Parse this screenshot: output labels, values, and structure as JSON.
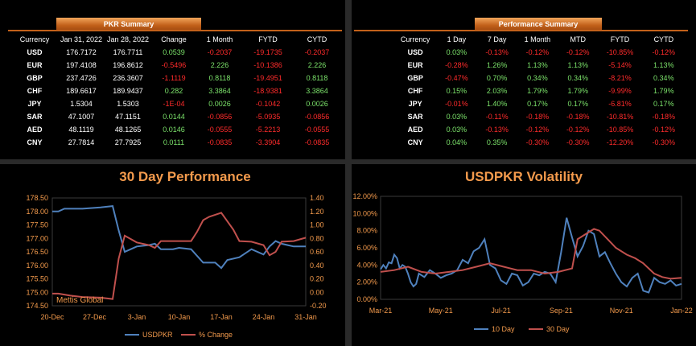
{
  "pkr_summary": {
    "title": "PKR Summary",
    "columns": [
      "Currency",
      "Jan 31, 2022",
      "Jan 28, 2022",
      "Change",
      "1 Month",
      "FYTD",
      "CYTD"
    ],
    "rows": [
      {
        "currency": "USD",
        "jan31": "176.7172",
        "jan28": "176.7711",
        "change": "0.0539",
        "m1": "-0.2037",
        "fytd": "-19.1735",
        "cytd": "-0.2037"
      },
      {
        "currency": "EUR",
        "jan31": "197.4108",
        "jan28": "196.8612",
        "change": "-0.5496",
        "m1": "2.226",
        "fytd": "-10.1386",
        "cytd": "2.226"
      },
      {
        "currency": "GBP",
        "jan31": "237.4726",
        "jan28": "236.3607",
        "change": "-1.1119",
        "m1": "0.8118",
        "fytd": "-19.4951",
        "cytd": "0.8118"
      },
      {
        "currency": "CHF",
        "jan31": "189.6617",
        "jan28": "189.9437",
        "change": "0.282",
        "m1": "3.3864",
        "fytd": "-18.9381",
        "cytd": "3.3864"
      },
      {
        "currency": "JPY",
        "jan31": "1.5304",
        "jan28": "1.5303",
        "change": "-1E-04",
        "m1": "0.0026",
        "fytd": "-0.1042",
        "cytd": "0.0026"
      },
      {
        "currency": "SAR",
        "jan31": "47.1007",
        "jan28": "47.1151",
        "change": "0.0144",
        "m1": "-0.0856",
        "fytd": "-5.0935",
        "cytd": "-0.0856"
      },
      {
        "currency": "AED",
        "jan31": "48.1119",
        "jan28": "48.1265",
        "change": "0.0146",
        "m1": "-0.0555",
        "fytd": "-5.2213",
        "cytd": "-0.0555"
      },
      {
        "currency": "CNY",
        "jan31": "27.7814",
        "jan28": "27.7925",
        "change": "0.0111",
        "m1": "-0.0835",
        "fytd": "-3.3904",
        "cytd": "-0.0835"
      }
    ]
  },
  "performance_summary": {
    "title": "Performance Summary",
    "columns": [
      "Currency",
      "1 Day",
      "7 Day",
      "1 Month",
      "MTD",
      "FYTD",
      "CYTD"
    ],
    "rows": [
      {
        "currency": "USD",
        "d1": "0.03%",
        "d7": "-0.13%",
        "m1": "-0.12%",
        "mtd": "-0.12%",
        "fytd": "-10.85%",
        "cytd": "-0.12%"
      },
      {
        "currency": "EUR",
        "d1": "-0.28%",
        "d7": "1.26%",
        "m1": "1.13%",
        "mtd": "1.13%",
        "fytd": "-5.14%",
        "cytd": "1.13%"
      },
      {
        "currency": "GBP",
        "d1": "-0.47%",
        "d7": "0.70%",
        "m1": "0.34%",
        "mtd": "0.34%",
        "fytd": "-8.21%",
        "cytd": "0.34%"
      },
      {
        "currency": "CHF",
        "d1": "0.15%",
        "d7": "2.03%",
        "m1": "1.79%",
        "mtd": "1.79%",
        "fytd": "-9.99%",
        "cytd": "1.79%"
      },
      {
        "currency": "JPY",
        "d1": "-0.01%",
        "d7": "1.40%",
        "m1": "0.17%",
        "mtd": "0.17%",
        "fytd": "-6.81%",
        "cytd": "0.17%"
      },
      {
        "currency": "SAR",
        "d1": "0.03%",
        "d7": "-0.11%",
        "m1": "-0.18%",
        "mtd": "-0.18%",
        "fytd": "-10.81%",
        "cytd": "-0.18%"
      },
      {
        "currency": "AED",
        "d1": "0.03%",
        "d7": "-0.13%",
        "m1": "-0.12%",
        "mtd": "-0.12%",
        "fytd": "-10.85%",
        "cytd": "-0.12%"
      },
      {
        "currency": "CNY",
        "d1": "0.04%",
        "d7": "0.35%",
        "m1": "-0.30%",
        "mtd": "-0.30%",
        "fytd": "-12.20%",
        "cytd": "-0.30%"
      }
    ]
  },
  "colors": {
    "accent": "#f39a4c",
    "positive": "#7be26a",
    "negative": "#ff2b2b",
    "series_blue": "#4f81bd",
    "series_red": "#c0504d"
  },
  "chart_data": [
    {
      "type": "line",
      "title": "30 Day Performance",
      "watermark": "Mettis Global",
      "x_ticks": [
        "20-Dec",
        "27-Dec",
        "3-Jan",
        "10-Jan",
        "17-Jan",
        "24-Jan",
        "31-Jan"
      ],
      "y_left_ticks": [
        "178.50",
        "178.00",
        "177.50",
        "177.00",
        "176.50",
        "176.00",
        "175.50",
        "175.00",
        "174.50"
      ],
      "y_right_ticks": [
        "1.40",
        "1.20",
        "1.00",
        "0.80",
        "0.60",
        "0.40",
        "0.20",
        "0.00",
        "-0.20"
      ],
      "ylim_left": [
        174.5,
        178.5
      ],
      "ylim_right": [
        -0.2,
        1.4
      ],
      "xlim": [
        0,
        42
      ],
      "series": [
        {
          "name": "USDPKR",
          "axis": "left",
          "color": "#4f81bd",
          "x": [
            0,
            1,
            2,
            3,
            5,
            8,
            10,
            11,
            12,
            13,
            14,
            16,
            17,
            18,
            19,
            20,
            21,
            23,
            25,
            27,
            28,
            29,
            31,
            33,
            35,
            36,
            37,
            38,
            39,
            40,
            42
          ],
          "values": [
            178.0,
            178.0,
            178.1,
            178.1,
            178.1,
            178.15,
            178.2,
            177.3,
            176.5,
            176.6,
            176.7,
            176.75,
            176.8,
            176.6,
            176.6,
            176.6,
            176.65,
            176.6,
            176.1,
            176.1,
            175.9,
            176.2,
            176.3,
            176.6,
            176.4,
            176.7,
            176.9,
            176.8,
            176.75,
            176.7,
            176.7
          ]
        },
        {
          "name": "% Change",
          "axis": "right",
          "color": "#c0504d",
          "x": [
            0,
            1,
            3,
            5,
            8,
            10,
            11,
            12,
            14,
            16,
            17,
            18,
            21,
            23,
            24,
            25,
            26,
            28,
            30,
            31,
            33,
            35,
            36,
            37,
            38,
            40,
            42
          ],
          "values": [
            -0.02,
            -0.02,
            -0.05,
            -0.07,
            -0.08,
            -0.1,
            0.5,
            0.84,
            0.74,
            0.7,
            0.66,
            0.76,
            0.76,
            0.76,
            0.9,
            1.07,
            1.12,
            1.18,
            0.93,
            0.76,
            0.75,
            0.7,
            0.55,
            0.6,
            0.75,
            0.76,
            0.81
          ]
        }
      ]
    },
    {
      "type": "line",
      "title": "USDPKR Volatility",
      "x_ticks": [
        "Mar-21",
        "May-21",
        "Jul-21",
        "Sep-21",
        "Nov-21",
        "Jan-22"
      ],
      "y_ticks": [
        "12.00%",
        "10.00%",
        "8.00%",
        "6.00%",
        "4.00%",
        "2.00%",
        "0.00%"
      ],
      "ylim": [
        0,
        12
      ],
      "xlim": [
        0,
        11
      ],
      "series": [
        {
          "name": "10 Day",
          "color": "#4f81bd",
          "x": [
            0,
            0.1,
            0.2,
            0.3,
            0.4,
            0.5,
            0.6,
            0.7,
            0.8,
            0.9,
            1.0,
            1.1,
            1.2,
            1.3,
            1.4,
            1.6,
            1.8,
            2.0,
            2.2,
            2.4,
            2.6,
            2.8,
            3.0,
            3.2,
            3.4,
            3.6,
            3.8,
            4.0,
            4.2,
            4.4,
            4.6,
            4.8,
            5.0,
            5.2,
            5.4,
            5.6,
            5.8,
            6.0,
            6.2,
            6.4,
            6.6,
            6.8,
            7.0,
            7.2,
            7.4,
            7.6,
            7.8,
            8.0,
            8.2,
            8.4,
            8.6,
            8.8,
            9.0,
            9.2,
            9.4,
            9.6,
            9.8,
            10.0,
            10.2,
            10.4,
            10.6,
            10.8,
            11.0
          ],
          "values": [
            3.5,
            4.0,
            3.6,
            4.3,
            4.2,
            5.2,
            4.8,
            3.6,
            4.0,
            3.8,
            3.0,
            2.0,
            1.5,
            1.8,
            3.0,
            2.6,
            3.4,
            3.0,
            2.5,
            2.8,
            3.0,
            3.4,
            4.6,
            4.2,
            5.6,
            6.0,
            7.0,
            4.0,
            3.6,
            2.2,
            1.8,
            3.0,
            2.8,
            1.6,
            2.0,
            3.0,
            2.8,
            3.2,
            3.0,
            2.0,
            5.5,
            9.5,
            7.2,
            5.0,
            6.2,
            8.0,
            7.6,
            5.0,
            5.5,
            4.2,
            3.0,
            2.0,
            1.5,
            2.5,
            3.0,
            1.0,
            0.8,
            2.5,
            2.0,
            1.8,
            2.2,
            1.6,
            1.8
          ]
        },
        {
          "name": "30 Day",
          "color": "#c0504d",
          "x": [
            0,
            0.5,
            1.0,
            1.5,
            2.0,
            2.5,
            3.0,
            3.5,
            4.0,
            4.5,
            5.0,
            5.5,
            6.0,
            6.5,
            7.0,
            7.2,
            7.5,
            7.8,
            8.0,
            8.3,
            8.6,
            9.0,
            9.3,
            9.6,
            10.0,
            10.3,
            10.6,
            11.0
          ],
          "values": [
            3.2,
            3.4,
            3.8,
            3.2,
            3.0,
            3.2,
            3.4,
            3.8,
            4.2,
            3.8,
            3.4,
            3.4,
            3.0,
            3.2,
            3.6,
            7.0,
            7.6,
            8.2,
            8.0,
            7.0,
            6.0,
            5.2,
            4.8,
            4.2,
            3.0,
            2.6,
            2.4,
            2.5
          ]
        }
      ]
    }
  ]
}
